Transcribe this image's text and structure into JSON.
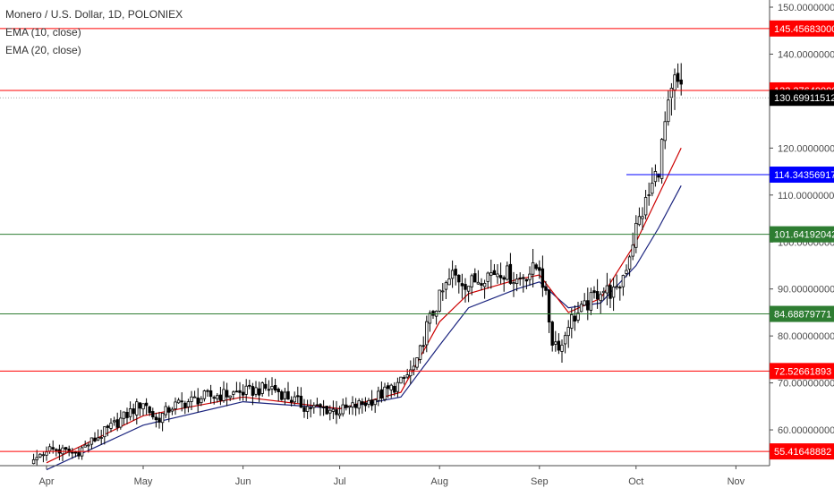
{
  "header": {
    "title": "Monero / U.S. Dollar, 1D, POLONIEX",
    "indicators": [
      "EMA (10, close)",
      "EMA (20, close)"
    ]
  },
  "colors": {
    "candle": "#000000",
    "ema10": "#cc0000",
    "ema20": "#1a237e",
    "resistance": "#ff0000",
    "support": "#2e7d32",
    "entry": "#0000ff",
    "last_price": "#000000"
  },
  "chart_data": {
    "type": "candlestick",
    "x_ticks": [
      "Apr",
      "May",
      "Jun",
      "Jul",
      "Aug",
      "Sep",
      "Oct",
      "Nov"
    ],
    "y_ticks": [
      "150.00000000",
      "140.00000000",
      "130.00000000",
      "120.00000000",
      "110.00000000",
      "100.00000000",
      "90.00000000",
      "80.00000000",
      "70.00000000",
      "60.00000000"
    ],
    "ylim": [
      51.5,
      151.5
    ],
    "price_lines": [
      {
        "value": 145.45683,
        "label": "145.45683000",
        "color": "#ff0000"
      },
      {
        "value": 132.2764,
        "label": "132.27640000",
        "color": "#ff0000"
      },
      {
        "value": 130.69911512,
        "label": "130.69911512",
        "color": "#000000",
        "style": "dotted"
      },
      {
        "value": 114.34356917,
        "label": "114.34356917",
        "color": "#0000ff"
      },
      {
        "value": 101.64192042,
        "label": "101.64192042",
        "color": "#2e7d32"
      },
      {
        "value": 84.68879771,
        "label": "84.68879771",
        "color": "#2e7d32"
      },
      {
        "value": 72.52661893,
        "label": "72.52661893",
        "color": "#ff0000"
      },
      {
        "value": 55.41648882,
        "label": "55.41648882",
        "color": "#ff0000"
      }
    ],
    "anchors": [
      {
        "date": "Mar 28",
        "value": 53
      },
      {
        "date": "Apr 1",
        "value": 56
      },
      {
        "date": "Apr 10",
        "value": 55
      },
      {
        "date": "Apr 20",
        "value": 60
      },
      {
        "date": "May 1",
        "value": 66
      },
      {
        "date": "May 5",
        "value": 62
      },
      {
        "date": "May 10",
        "value": 65
      },
      {
        "date": "May 20",
        "value": 67
      },
      {
        "date": "Jun 1",
        "value": 68
      },
      {
        "date": "Jun 10",
        "value": 69
      },
      {
        "date": "Jun 20",
        "value": 65
      },
      {
        "date": "Jul 1",
        "value": 64
      },
      {
        "date": "Jul 10",
        "value": 66
      },
      {
        "date": "Jul 20",
        "value": 70
      },
      {
        "date": "Jul 25",
        "value": 74
      },
      {
        "date": "Jul 28",
        "value": 82
      },
      {
        "date": "Aug 1",
        "value": 88
      },
      {
        "date": "Aug 5",
        "value": 93
      },
      {
        "date": "Aug 10",
        "value": 91
      },
      {
        "date": "Aug 15",
        "value": 93
      },
      {
        "date": "Aug 20",
        "value": 94
      },
      {
        "date": "Aug 25",
        "value": 92
      },
      {
        "date": "Aug 30",
        "value": 94
      },
      {
        "date": "Sep 1",
        "value": 95
      },
      {
        "date": "Sep 3",
        "value": 88
      },
      {
        "date": "Sep 5",
        "value": 79
      },
      {
        "date": "Sep 8",
        "value": 78
      },
      {
        "date": "Sep 10",
        "value": 83
      },
      {
        "date": "Sep 15",
        "value": 86
      },
      {
        "date": "Sep 20",
        "value": 90
      },
      {
        "date": "Sep 25",
        "value": 89
      },
      {
        "date": "Sep 28",
        "value": 95
      },
      {
        "date": "Oct 1",
        "value": 103
      },
      {
        "date": "Oct 5",
        "value": 110
      },
      {
        "date": "Oct 8",
        "value": 116
      },
      {
        "date": "Oct 10",
        "value": 125
      },
      {
        "date": "Oct 13",
        "value": 134
      },
      {
        "date": "Oct 15",
        "value": 132
      }
    ],
    "ema10_points": [
      {
        "date": "Apr 1",
        "value": 53
      },
      {
        "date": "May 1",
        "value": 63
      },
      {
        "date": "Jun 1",
        "value": 67
      },
      {
        "date": "Jul 1",
        "value": 64.5
      },
      {
        "date": "Jul 20",
        "value": 68
      },
      {
        "date": "Aug 1",
        "value": 83
      },
      {
        "date": "Aug 10",
        "value": 89
      },
      {
        "date": "Aug 25",
        "value": 92
      },
      {
        "date": "Sep 1",
        "value": 93
      },
      {
        "date": "Sep 10",
        "value": 85
      },
      {
        "date": "Sep 20",
        "value": 88
      },
      {
        "date": "Oct 1",
        "value": 100
      },
      {
        "date": "Oct 8",
        "value": 110
      },
      {
        "date": "Oct 15",
        "value": 120
      }
    ],
    "ema20_points": [
      {
        "date": "Apr 1",
        "value": 51.5
      },
      {
        "date": "May 1",
        "value": 61
      },
      {
        "date": "Jun 1",
        "value": 66
      },
      {
        "date": "Jul 1",
        "value": 64.5
      },
      {
        "date": "Jul 20",
        "value": 67
      },
      {
        "date": "Aug 1",
        "value": 78
      },
      {
        "date": "Aug 10",
        "value": 86
      },
      {
        "date": "Aug 25",
        "value": 90
      },
      {
        "date": "Sep 1",
        "value": 91.5
      },
      {
        "date": "Sep 10",
        "value": 86
      },
      {
        "date": "Sep 20",
        "value": 87
      },
      {
        "date": "Oct 1",
        "value": 95
      },
      {
        "date": "Oct 8",
        "value": 103
      },
      {
        "date": "Oct 15",
        "value": 112
      }
    ]
  }
}
